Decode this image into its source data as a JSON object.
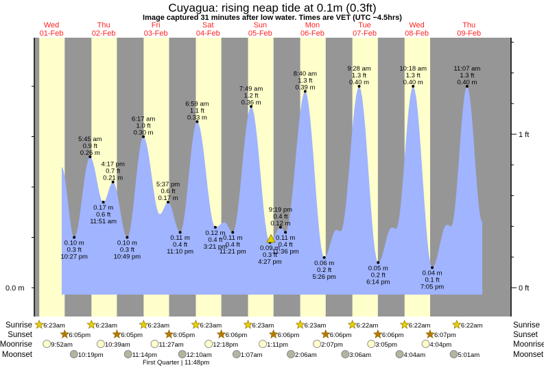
{
  "title": "Cuyagua: rising  neap tide at 0.1m (0.3ft)",
  "subtitle": "Image captured 31 minutes after low water. Times are VET (UTC −4.5hrs)",
  "colors": {
    "day": "#ffffcc",
    "night": "#969696",
    "water": "#a0b4ff",
    "day_label": "#ff2020",
    "sunrise": "#e6d000",
    "sunset": "#b87800",
    "moonrise": "#ffffcc",
    "moonset": "#b4b4a0",
    "current_marker": "#e0d000"
  },
  "chart_data": {
    "type": "area",
    "title": "Cuyagua: rising  neap tide at 0.1m (0.3ft)",
    "days": [
      {
        "dow": "Wed",
        "date": "01-Feb"
      },
      {
        "dow": "Thu",
        "date": "02-Feb"
      },
      {
        "dow": "Fri",
        "date": "03-Feb"
      },
      {
        "dow": "Sat",
        "date": "04-Feb"
      },
      {
        "dow": "Sun",
        "date": "05-Feb"
      },
      {
        "dow": "Mon",
        "date": "06-Feb"
      },
      {
        "dow": "Tue",
        "date": "07-Feb"
      },
      {
        "dow": "Wed",
        "date": "08-Feb"
      },
      {
        "dow": "Thu",
        "date": "09-Feb"
      }
    ],
    "left_axis": {
      "unit": "m",
      "label": "0.0 m"
    },
    "right_axis": {
      "unit": "ft",
      "labels": [
        "1 ft",
        "0 ft"
      ]
    },
    "extremes": [
      {
        "type": "low",
        "time": "10:27 pm",
        "ft": "0.3 ft",
        "m": "0.10 m",
        "value_m": 0.1
      },
      {
        "type": "high",
        "time": "5:45 am",
        "ft": "0.9 ft",
        "m": "0.26 m",
        "value_m": 0.26
      },
      {
        "type": "low",
        "time": "11:51 am",
        "ft": "0.6 ft",
        "m": "0.17 m",
        "value_m": 0.17
      },
      {
        "type": "high",
        "time": "4:17 pm",
        "ft": "0.7 ft",
        "m": "0.21 m",
        "value_m": 0.21
      },
      {
        "type": "low",
        "time": "10:49 pm",
        "ft": "0.3 ft",
        "m": "0.10 m",
        "value_m": 0.1
      },
      {
        "type": "high",
        "time": "6:17 am",
        "ft": "1.0 ft",
        "m": "0.30 m",
        "value_m": 0.3
      },
      {
        "type": "high",
        "time": "5:37 pm",
        "ft": "0.6 ft",
        "m": "0.17 m",
        "value_m": 0.17
      },
      {
        "type": "low",
        "time": "11:10 pm",
        "ft": "0.4 ft",
        "m": "0.11 m",
        "value_m": 0.11
      },
      {
        "type": "high",
        "time": "6:59 am",
        "ft": "1.1 ft",
        "m": "0.33 m",
        "value_m": 0.33
      },
      {
        "type": "low",
        "time": "3:21 pm",
        "ft": "0.4 ft",
        "m": "0.12 m",
        "value_m": 0.12
      },
      {
        "type": "low",
        "time": "11:21 pm",
        "ft": "0.4 ft",
        "m": "0.11 m",
        "value_m": 0.11
      },
      {
        "type": "high",
        "time": "7:49 am",
        "ft": "1.2 ft",
        "m": "0.36 m",
        "value_m": 0.36
      },
      {
        "type": "low",
        "time": "4:27 pm",
        "ft": "0.3 ft",
        "m": "0.09 m",
        "value_m": 0.09
      },
      {
        "type": "high",
        "time": "9:19 pm",
        "ft": "0.4 ft",
        "m": "0.12 m",
        "value_m": 0.12
      },
      {
        "type": "low",
        "time": "11:36 pm",
        "ft": "0.4 ft",
        "m": "0.11 m",
        "value_m": 0.11
      },
      {
        "type": "high",
        "time": "8:40 am",
        "ft": "1.3 ft",
        "m": "0.39 m",
        "value_m": 0.39
      },
      {
        "type": "low",
        "time": "5:26 pm",
        "ft": "0.2 ft",
        "m": "0.06 m",
        "value_m": 0.06
      },
      {
        "type": "high",
        "time": "9:28 am",
        "ft": "1.3 ft",
        "m": "0.40 m",
        "value_m": 0.4
      },
      {
        "type": "low",
        "time": "6:14 pm",
        "ft": "0.2 ft",
        "m": "0.05 m",
        "value_m": 0.05
      },
      {
        "type": "high",
        "time": "10:18 am",
        "ft": "1.3 ft",
        "m": "0.40 m",
        "value_m": 0.4
      },
      {
        "type": "low",
        "time": "7:05 pm",
        "ft": "0.1 ft",
        "m": "0.04 m",
        "value_m": 0.04
      },
      {
        "type": "high",
        "time": "11:07 am",
        "ft": "1.3 ft",
        "m": "0.40 m",
        "value_m": 0.4
      }
    ],
    "current": {
      "day": "Sun",
      "time": "4:58 pm",
      "note": "31 minutes after low water"
    },
    "grid": false
  },
  "almanac": {
    "rows": [
      {
        "label": "Sunrise",
        "kind": "sunrise",
        "times": [
          "6:23am",
          "6:23am",
          "6:23am",
          "6:23am",
          "6:23am",
          "6:23am",
          "6:22am",
          "6:22am",
          "6:22am"
        ]
      },
      {
        "label": "Sunset",
        "kind": "sunset",
        "times": [
          "6:05pm",
          "6:05pm",
          "6:05pm",
          "6:06pm",
          "6:06pm",
          "6:06pm",
          "6:06pm",
          "6:07pm"
        ]
      },
      {
        "label": "Moonrise",
        "kind": "moonrise",
        "times": [
          "9:52am",
          "10:39am",
          "11:27am",
          "12:18pm",
          "1:11pm",
          "2:07pm",
          "3:05pm",
          "4:04pm"
        ]
      },
      {
        "label": "Moonset",
        "kind": "moonset",
        "times": [
          "10:19pm",
          "11:14pm",
          "12:10am",
          "1:07am",
          "2:06am",
          "3:06am",
          "4:04am",
          "5:01am"
        ]
      }
    ],
    "moon_phase": "First Quarter | 11:48pm"
  }
}
